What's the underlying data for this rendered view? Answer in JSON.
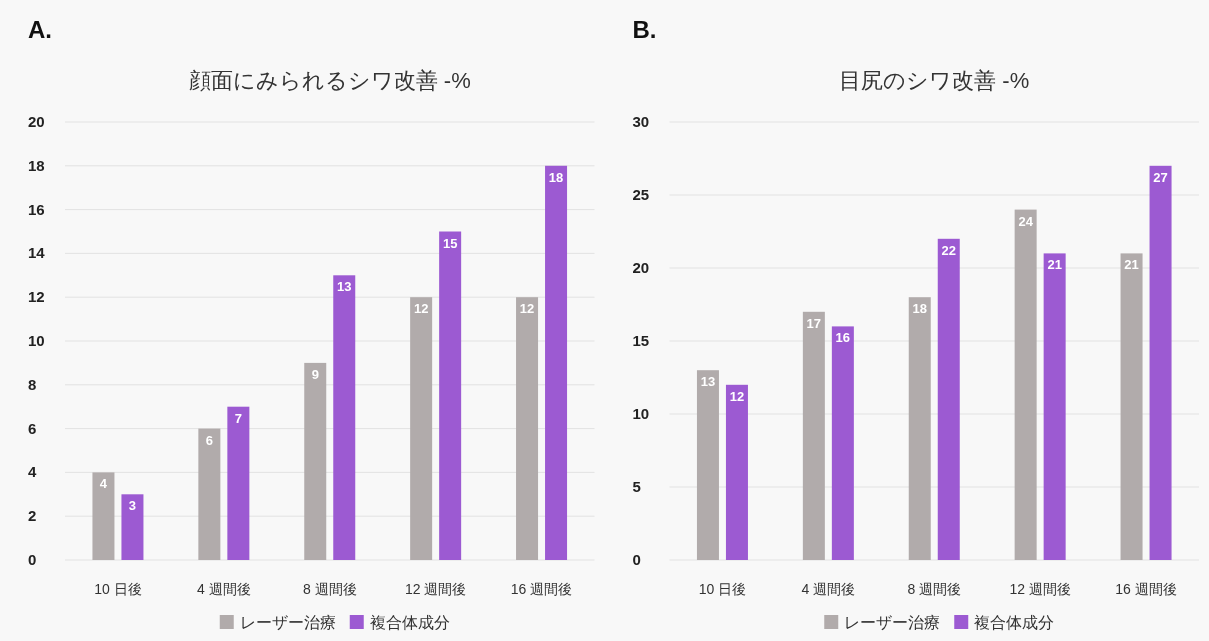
{
  "chart_data": [
    {
      "type": "bar",
      "title": "顔面にみられるシワ改善 -%",
      "annotations": [
        "A."
      ],
      "categories": [
        "10 日後",
        "4 週間後",
        "8 週間後",
        "12 週間後",
        "16 週間後"
      ],
      "series": [
        {
          "name": "レーザー治療",
          "color": "#b1abab",
          "values": [
            4,
            6,
            9,
            12,
            12
          ]
        },
        {
          "name": "複合体成分",
          "color": "#9c5ad2",
          "values": [
            3,
            7,
            13,
            15,
            18
          ]
        }
      ],
      "ylim": [
        0,
        20
      ],
      "yticks": [
        0,
        2,
        4,
        6,
        8,
        10,
        12,
        14,
        16,
        18,
        20
      ],
      "grid": "y",
      "legend": "bottom",
      "data_labels": true
    },
    {
      "type": "bar",
      "title": "目尻のシワ改善 -%",
      "annotations": [
        "B."
      ],
      "categories": [
        "10 日後",
        "4 週間後",
        "8 週間後",
        "12 週間後",
        "16 週間後"
      ],
      "series": [
        {
          "name": "レーザー治療",
          "color": "#b1abab",
          "values": [
            13,
            17,
            18,
            24,
            21
          ]
        },
        {
          "name": "複合体成分",
          "color": "#9c5ad2",
          "values": [
            12,
            16,
            22,
            21,
            27
          ]
        }
      ],
      "ylim": [
        0,
        30
      ],
      "yticks": [
        0,
        5,
        10,
        15,
        20,
        25,
        30
      ],
      "grid": "y",
      "legend": "bottom",
      "data_labels": true
    }
  ]
}
